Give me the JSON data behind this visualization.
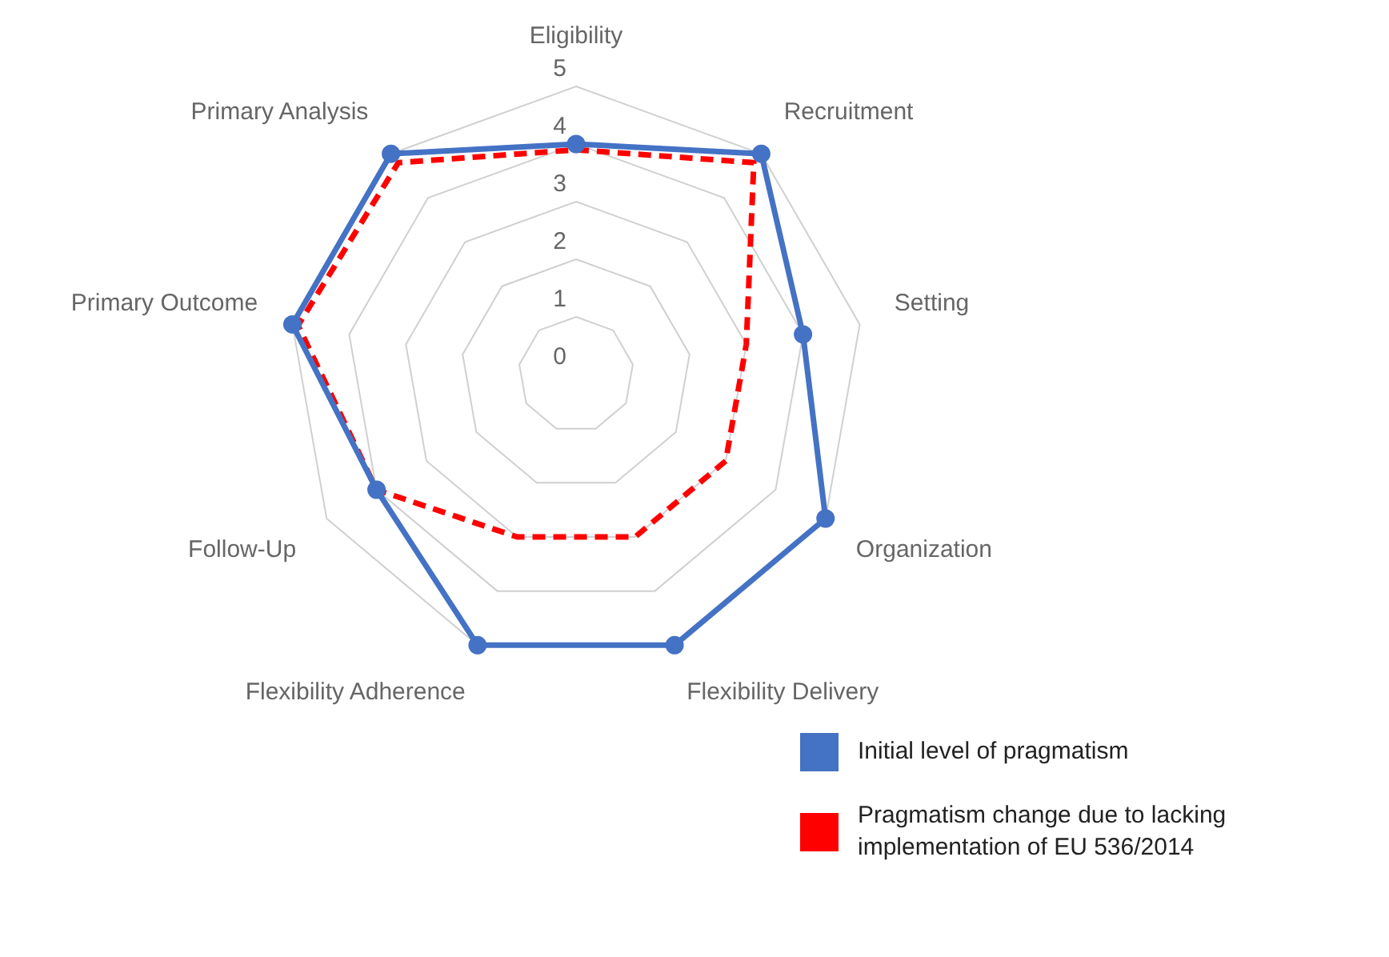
{
  "chart_data": {
    "type": "radar",
    "categories": [
      "Eligibility",
      "Recruitment",
      "Setting",
      "Organization",
      "Flexibility Delivery",
      "Flexibility Adherence",
      "Follow-Up",
      "Primary Outcome",
      "Primary Analysis"
    ],
    "series": [
      {
        "name": "Initial level of pragmatism",
        "color": "#4472c4",
        "values": [
          4,
          5,
          4,
          5,
          5,
          5,
          4,
          5,
          5
        ],
        "marker": "circle",
        "line_style": "solid"
      },
      {
        "name": "Pragmatism change due to lacking implementation of EU 536/2014",
        "color": "#ff0000",
        "values": [
          3.9,
          4.8,
          3,
          3,
          3,
          3,
          4,
          4.9,
          4.8
        ],
        "marker": "none",
        "line_style": "dashed"
      }
    ],
    "ylim": [
      0,
      5
    ],
    "yticks": [
      0,
      1,
      2,
      3,
      4,
      5
    ],
    "grid": true,
    "legend": "bottom right"
  }
}
